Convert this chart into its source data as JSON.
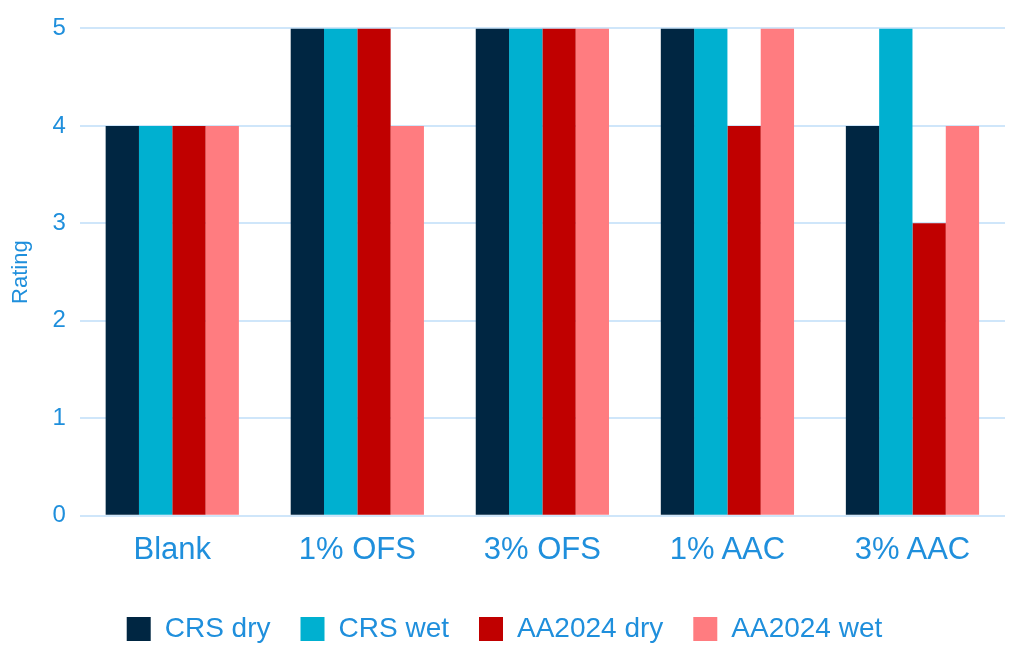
{
  "chart_data": {
    "type": "bar",
    "ylabel": "Rating",
    "categories": [
      "Blank",
      "1% OFS",
      "3% OFS",
      "1% AAC",
      "3% AAC"
    ],
    "series": [
      {
        "name": "CRS dry",
        "color": "#002642",
        "values": [
          4,
          5,
          5,
          5,
          4
        ]
      },
      {
        "name": "CRS wet",
        "color": "#00b0d0",
        "values": [
          4,
          5,
          5,
          5,
          5
        ]
      },
      {
        "name": "AA2024 dry",
        "color": "#c00000",
        "values": [
          4,
          5,
          5,
          4,
          3
        ]
      },
      {
        "name": "AA2024 wet",
        "color": "#ff7c80",
        "values": [
          4,
          4,
          5,
          5,
          4
        ]
      }
    ],
    "ylim": [
      0,
      5
    ],
    "yticks": [
      0,
      1,
      2,
      3,
      4,
      5
    ],
    "grid": "y",
    "legend": "bottom"
  }
}
